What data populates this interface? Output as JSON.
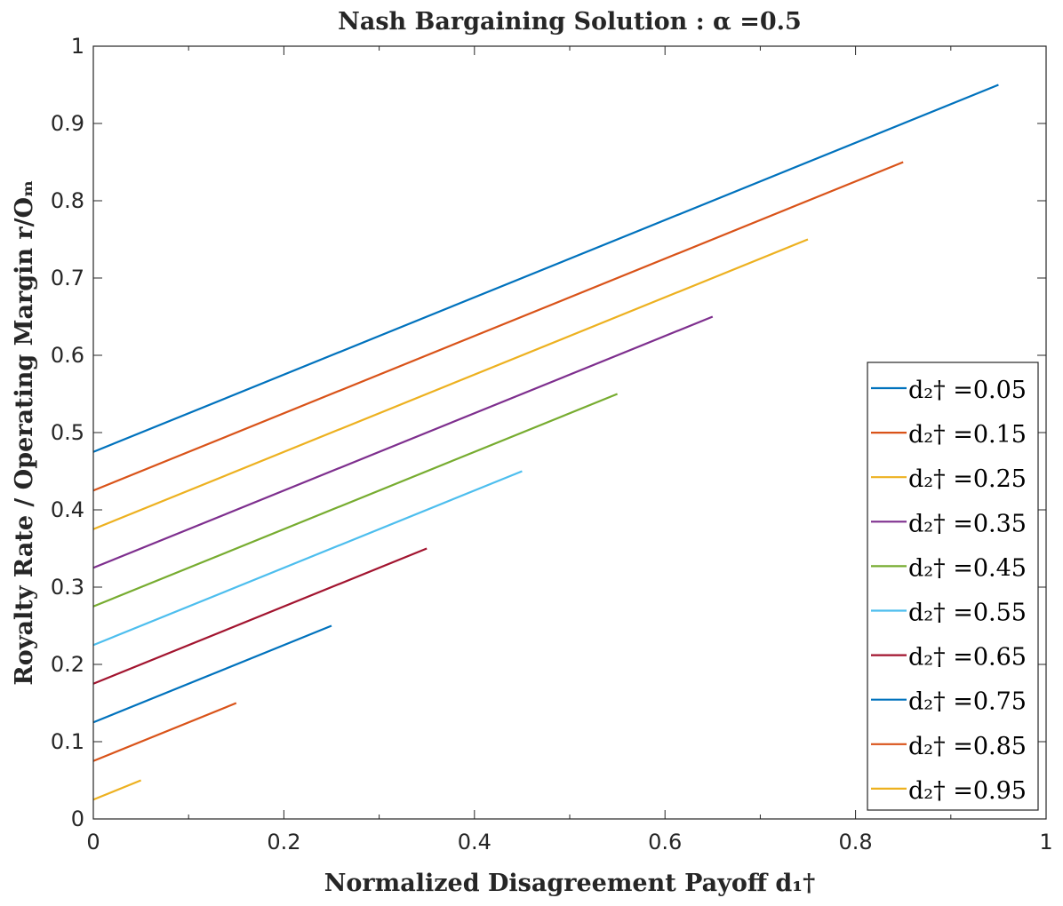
{
  "chart_data": {
    "type": "line",
    "title": "Nash Bargaining Solution : α =0.5",
    "xlabel": "Normalized Disagreement Payoff  d₁†",
    "ylabel": "Royalty Rate / Operating Margin  r/Oₘ",
    "xlim": [
      0,
      1
    ],
    "ylim": [
      0,
      1
    ],
    "xticks": [
      "0",
      "0.2",
      "0.4",
      "0.6",
      "0.8",
      "1"
    ],
    "yticks": [
      "0",
      "0.1",
      "0.2",
      "0.3",
      "0.4",
      "0.5",
      "0.6",
      "0.7",
      "0.8",
      "0.9",
      "1"
    ],
    "grid": false,
    "legend_position": "bottom-right",
    "series": [
      {
        "name": "d₂† =0.05",
        "color": "#0072BD",
        "x": [
          0,
          0.95
        ],
        "y": [
          0.475,
          0.95
        ]
      },
      {
        "name": "d₂† =0.15",
        "color": "#D95319",
        "x": [
          0,
          0.85
        ],
        "y": [
          0.425,
          0.85
        ]
      },
      {
        "name": "d₂† =0.25",
        "color": "#EDB120",
        "x": [
          0,
          0.75
        ],
        "y": [
          0.375,
          0.75
        ]
      },
      {
        "name": "d₂† =0.35",
        "color": "#7E2F8E",
        "x": [
          0,
          0.65
        ],
        "y": [
          0.325,
          0.65
        ]
      },
      {
        "name": "d₂† =0.45",
        "color": "#77AC30",
        "x": [
          0,
          0.55
        ],
        "y": [
          0.275,
          0.55
        ]
      },
      {
        "name": "d₂† =0.55",
        "color": "#4DBEEE",
        "x": [
          0,
          0.45
        ],
        "y": [
          0.225,
          0.45
        ]
      },
      {
        "name": "d₂† =0.65",
        "color": "#A2142F",
        "x": [
          0,
          0.35
        ],
        "y": [
          0.175,
          0.35
        ]
      },
      {
        "name": "d₂† =0.75",
        "color": "#0072BD",
        "x": [
          0,
          0.25
        ],
        "y": [
          0.125,
          0.25
        ]
      },
      {
        "name": "d₂† =0.85",
        "color": "#D95319",
        "x": [
          0,
          0.15
        ],
        "y": [
          0.075,
          0.15
        ]
      },
      {
        "name": "d₂† =0.95",
        "color": "#EDB120",
        "x": [
          0,
          0.05
        ],
        "y": [
          0.025,
          0.05
        ]
      }
    ]
  }
}
